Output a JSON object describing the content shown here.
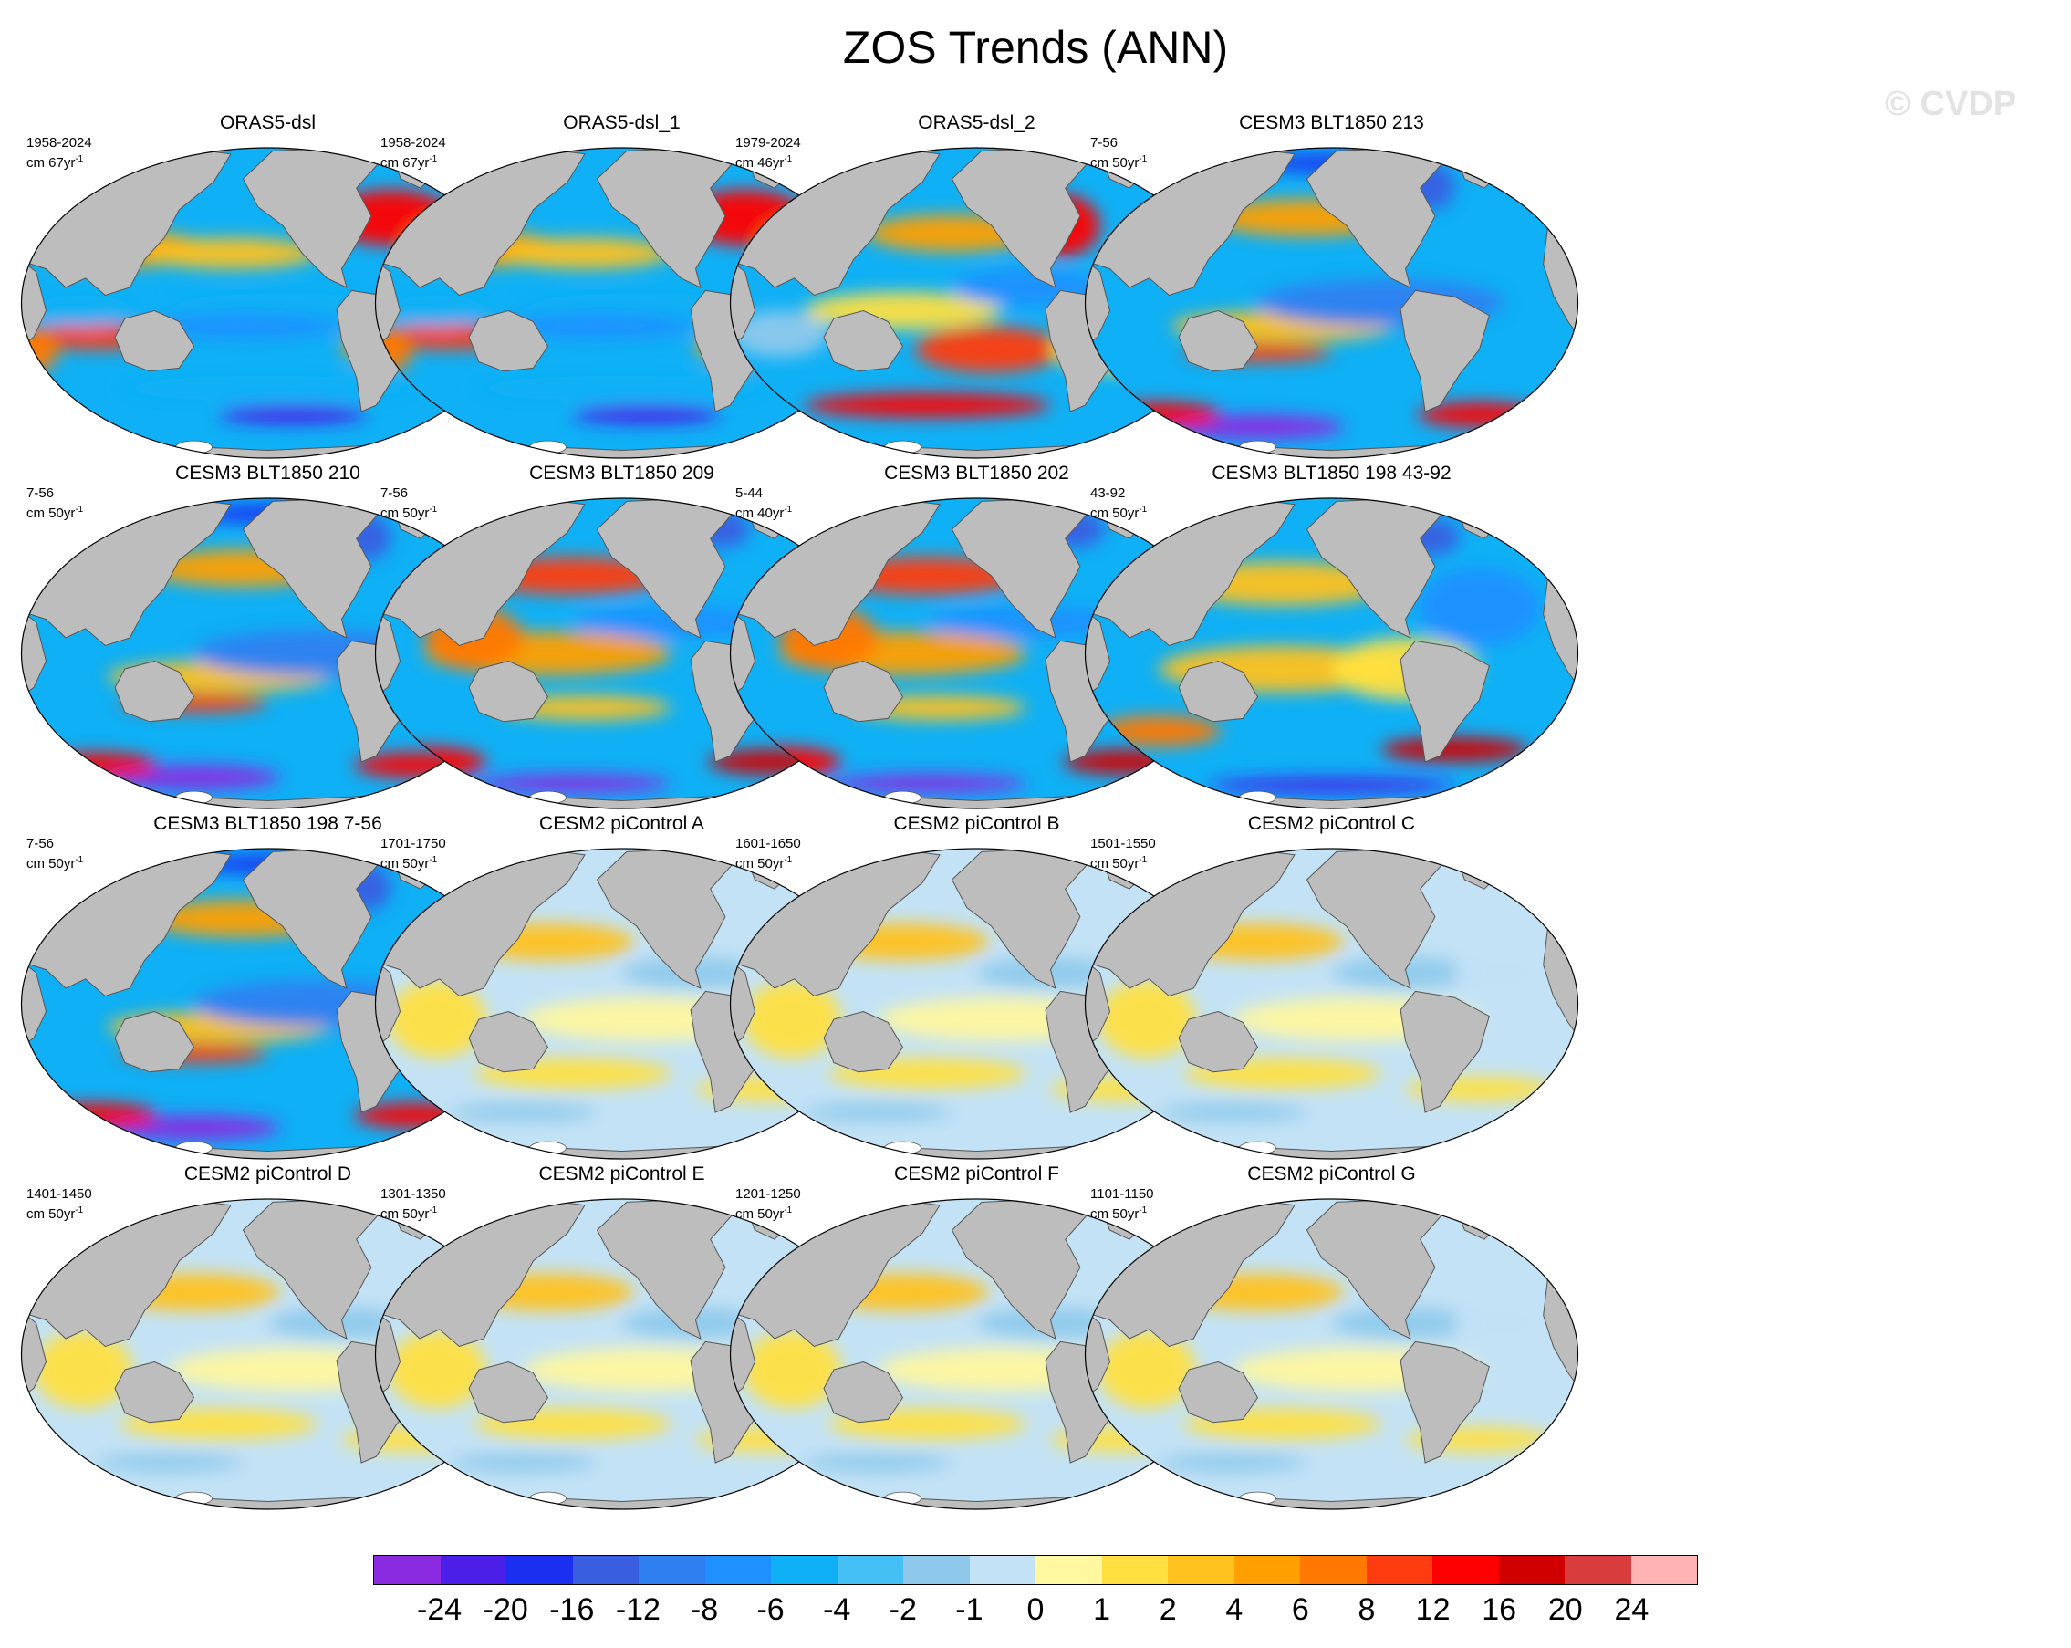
{
  "title": "ZOS Trends (ANN)",
  "watermark": "© CVDP",
  "colors": {
    "land": "#bdbdbd",
    "ocean_base": "#8fc8f0",
    "antarctic_ice": "#ffffff"
  },
  "panels": [
    {
      "title": "ORAS5-dsl",
      "period": "1958-2024",
      "units": "cm 67yr",
      "regime": "obs"
    },
    {
      "title": "ORAS5-dsl_1",
      "period": "1958-2024",
      "units": "cm 67yr",
      "regime": "obs"
    },
    {
      "title": "ORAS5-dsl_2",
      "period": "1979-2024",
      "units": "cm 46yr",
      "regime": "obs2"
    },
    {
      "title": "CESM3 BLT1850 213",
      "period": "7-56",
      "units": "cm 50yr",
      "regime": "blt_cold"
    },
    {
      "title": "CESM3 BLT1850 210",
      "period": "7-56",
      "units": "cm 50yr",
      "regime": "blt_cold"
    },
    {
      "title": "CESM3 BLT1850 209",
      "period": "7-56",
      "units": "cm 50yr",
      "regime": "blt_warm"
    },
    {
      "title": "CESM3 BLT1850 202",
      "period": "5-44",
      "units": "cm 40yr",
      "regime": "blt_warm"
    },
    {
      "title": "CESM3 BLT1850 198 43-92",
      "period": "43-92",
      "units": "cm 50yr",
      "regime": "blt_mixed"
    },
    {
      "title": "CESM3 BLT1850 198 7-56",
      "period": "7-56",
      "units": "cm 50yr",
      "regime": "blt_cold"
    },
    {
      "title": "CESM2 piControl A",
      "period": "1701-1750",
      "units": "cm 50yr",
      "regime": "pi"
    },
    {
      "title": "CESM2 piControl B",
      "period": "1601-1650",
      "units": "cm 50yr",
      "regime": "pi"
    },
    {
      "title": "CESM2 piControl C",
      "period": "1501-1550",
      "units": "cm 50yr",
      "regime": "pi"
    },
    {
      "title": "CESM2 piControl D",
      "period": "1401-1450",
      "units": "cm 50yr",
      "regime": "pi"
    },
    {
      "title": "CESM2 piControl E",
      "period": "1301-1350",
      "units": "cm 50yr",
      "regime": "pi"
    },
    {
      "title": "CESM2 piControl F",
      "period": "1201-1250",
      "units": "cm 50yr",
      "regime": "pi"
    },
    {
      "title": "CESM2 piControl G",
      "period": "1101-1150",
      "units": "cm 50yr",
      "regime": "pi"
    }
  ],
  "units_superscript": "-1",
  "colorbar": {
    "colors": [
      "#8a2be2",
      "#4b1fe8",
      "#1b2ff0",
      "#3a5ee0",
      "#2f7ff0",
      "#1e90ff",
      "#0fb0f5",
      "#44c0f5",
      "#8ec9ec",
      "#c3e2f5",
      "#fff8a0",
      "#ffe040",
      "#ffc21e",
      "#ffa000",
      "#ff7800",
      "#ff3c10",
      "#ff0000",
      "#d00000",
      "#d83c3c",
      "#ffb4b4"
    ],
    "labels": [
      "-24",
      "-20",
      "-16",
      "-12",
      "-8",
      "-6",
      "-4",
      "-2",
      "-1",
      "0",
      "1",
      "2",
      "4",
      "6",
      "8",
      "12",
      "16",
      "20",
      "24"
    ]
  }
}
